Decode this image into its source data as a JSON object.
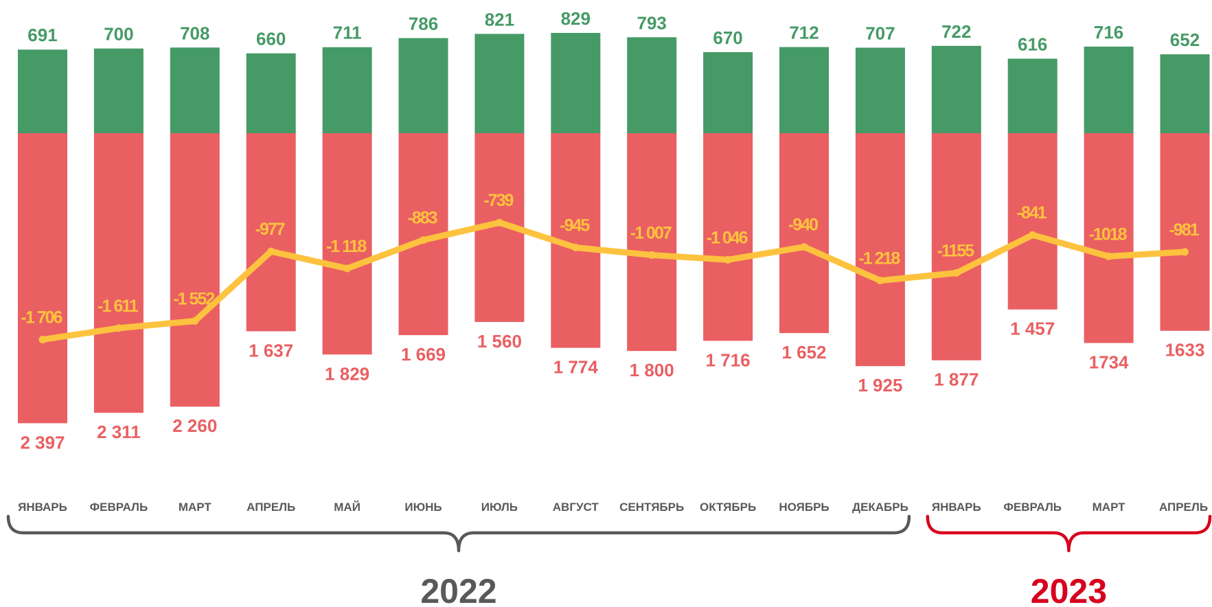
{
  "chart_data": {
    "type": "bar",
    "categories": [
      "ЯНВАРЬ",
      "ФЕВРАЛЬ",
      "МАРТ",
      "АПРЕЛЬ",
      "МАЙ",
      "ИЮНЬ",
      "ИЮЛЬ",
      "АВГУСТ",
      "СЕНТЯБРЬ",
      "ОКТЯБРЬ",
      "НОЯБРЬ",
      "ДЕКАБРЬ",
      "ЯНВАРЬ",
      "ФЕВРАЛЬ",
      "МАРТ",
      "АПРЕЛЬ"
    ],
    "series": [
      {
        "type": "bar",
        "direction": "up",
        "color": "#459a66",
        "values": [
          691,
          700,
          708,
          660,
          711,
          786,
          821,
          829,
          793,
          670,
          712,
          707,
          722,
          616,
          716,
          652
        ],
        "labels": [
          "691",
          "700",
          "708",
          "660",
          "711",
          "786",
          "821",
          "829",
          "793",
          "670",
          "712",
          "707",
          "722",
          "616",
          "716",
          "652"
        ]
      },
      {
        "type": "bar",
        "direction": "down",
        "color": "#e95f62",
        "values": [
          2397,
          2311,
          2260,
          1637,
          1829,
          1669,
          1560,
          1774,
          1800,
          1716,
          1652,
          1925,
          1877,
          1457,
          1734,
          1633
        ],
        "labels": [
          "2 397",
          "2 311",
          "2 260",
          "1 637",
          "1 829",
          "1 669",
          "1 560",
          "1 774",
          "1 800",
          "1 716",
          "1 652",
          "1 925",
          "1 877",
          "1 457",
          "1734",
          "1633"
        ]
      },
      {
        "type": "line",
        "color": "#fdc23e",
        "values": [
          -1706,
          -1611,
          -1552,
          -977,
          -1118,
          -883,
          -739,
          -945,
          -1007,
          -1046,
          -940,
          -1218,
          -1155,
          -841,
          -1018,
          -981
        ],
        "labels": [
          "-1 706",
          "-1 611",
          "-1 552",
          "-977",
          "-1 118",
          "-883",
          "-739",
          "-945",
          "-1 007",
          "-1 046",
          "-940",
          "-1 218",
          "-1155",
          "-841",
          "-1018",
          "-981"
        ]
      }
    ],
    "groups": [
      {
        "label": "2022",
        "from": 0,
        "to": 11,
        "color": "#595959"
      },
      {
        "label": "2023",
        "from": 12,
        "to": 15,
        "color": "#d7001e"
      }
    ],
    "ylim": [
      -2650,
      900
    ],
    "grid": false,
    "legend": "none"
  }
}
